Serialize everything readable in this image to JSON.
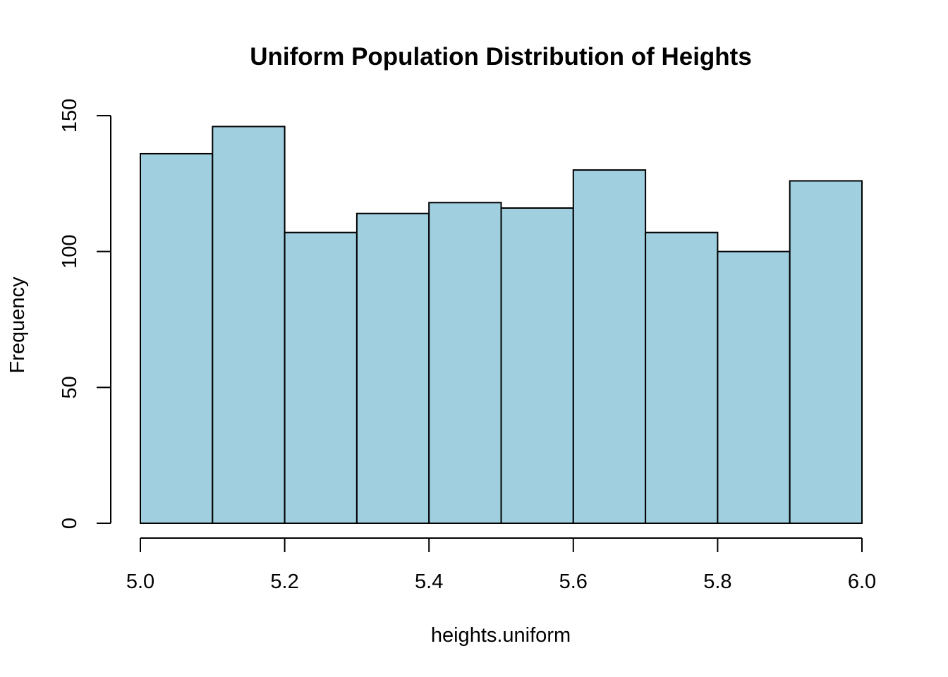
{
  "chart_data": {
    "type": "bar",
    "title": "Uniform Population Distribution of Heights",
    "xlabel": "heights.uniform",
    "ylabel": "Frequency",
    "bins": [
      {
        "start": 5.0,
        "end": 5.1,
        "count": 136
      },
      {
        "start": 5.1,
        "end": 5.2,
        "count": 146
      },
      {
        "start": 5.2,
        "end": 5.3,
        "count": 107
      },
      {
        "start": 5.3,
        "end": 5.4,
        "count": 114
      },
      {
        "start": 5.4,
        "end": 5.5,
        "count": 118
      },
      {
        "start": 5.5,
        "end": 5.6,
        "count": 116
      },
      {
        "start": 5.6,
        "end": 5.7,
        "count": 130
      },
      {
        "start": 5.7,
        "end": 5.8,
        "count": 107
      },
      {
        "start": 5.8,
        "end": 5.9,
        "count": 100
      },
      {
        "start": 5.9,
        "end": 6.0,
        "count": 126
      }
    ],
    "xlim": [
      5.0,
      6.0
    ],
    "ylim": [
      0,
      150
    ],
    "x_ticks": [
      5.0,
      5.2,
      5.4,
      5.6,
      5.8,
      6.0
    ],
    "x_tick_labels": [
      "5.0",
      "5.2",
      "5.4",
      "5.6",
      "5.8",
      "6.0"
    ],
    "y_ticks": [
      0,
      50,
      100,
      150
    ],
    "y_tick_labels": [
      "0",
      "50",
      "100",
      "150"
    ],
    "bar_color": "#a0cfe0",
    "edge_color": "#000000",
    "grid": false,
    "legend": "none"
  }
}
